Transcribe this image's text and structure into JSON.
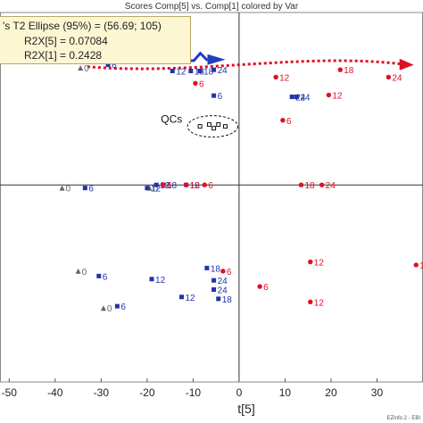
{
  "header": {
    "title": "Scores Comp[5] vs. Comp[1] colored by Var"
  },
  "stats": {
    "ellipse_text": "'s T2 Ellipse (95%) = (56.69; 105)",
    "r2x5_text": "R2X[5] = 0.07084",
    "r2x1_text": "R2X[1] = 0.2428"
  },
  "footer": {
    "text": "EZinfo 2 - EBI"
  },
  "annotation": {
    "qcs_label": "QCs"
  },
  "colors": {
    "blue": "#2233aa",
    "red": "#dd1122",
    "gray": "#666666",
    "arrow_blue": "#1f3fbf",
    "arrow_red": "#dd1122"
  },
  "chart_data": {
    "type": "scatter",
    "title": "Scores Comp[5] vs. Comp[1] colored by Var",
    "xlabel": "t[5]",
    "ylabel": "",
    "xlim": [
      -52,
      40
    ],
    "ylim": [
      -32,
      28
    ],
    "x_ticks": [
      -50,
      -40,
      -30,
      -20,
      -10,
      0,
      10,
      20,
      30
    ],
    "x_tick_labels": [
      "-50",
      "-40",
      "-30",
      "-20",
      "-10",
      "0",
      "10",
      "20",
      "30"
    ],
    "series": [
      {
        "color": "gray",
        "marker": "triangle",
        "points": [
          {
            "x": -34.5,
            "y": 19.0,
            "label": "0"
          },
          {
            "x": -38.5,
            "y": -0.5,
            "label": "0"
          },
          {
            "x": -35.0,
            "y": -14.0,
            "label": "0"
          },
          {
            "x": -29.5,
            "y": -20.0,
            "label": "0"
          },
          {
            "x": -19.5,
            "y": -0.5,
            "label": "0"
          }
        ]
      },
      {
        "color": "blue",
        "marker": "square",
        "points": [
          {
            "x": -28.5,
            "y": 19.5,
            "label": "6"
          },
          {
            "x": -14.5,
            "y": 18.5,
            "label": "12"
          },
          {
            "x": -10.5,
            "y": 18.5,
            "label": "18"
          },
          {
            "x": -8.5,
            "y": 18.5,
            "label": "18"
          },
          {
            "x": -5.5,
            "y": 18.7,
            "label": "24"
          },
          {
            "x": -5.5,
            "y": 14.5,
            "label": "6"
          },
          {
            "x": 11.5,
            "y": 14.3,
            "label": "24"
          },
          {
            "x": 12.5,
            "y": 14.3,
            "label": "24"
          },
          {
            "x": -33.5,
            "y": -0.5,
            "label": "6"
          },
          {
            "x": -20.0,
            "y": -0.5,
            "label": "12"
          },
          {
            "x": -18.0,
            "y": 0.0,
            "label": "12"
          },
          {
            "x": -16.5,
            "y": 0.0,
            "label": "18"
          },
          {
            "x": -11.5,
            "y": 0.0,
            "label": "18"
          },
          {
            "x": -5.5,
            "y": -15.5,
            "label": "24"
          },
          {
            "x": -7.0,
            "y": -13.5,
            "label": "18"
          },
          {
            "x": -5.5,
            "y": -17.0,
            "label": "24"
          },
          {
            "x": -30.5,
            "y": -14.8,
            "label": "6"
          },
          {
            "x": -19.0,
            "y": -15.3,
            "label": "12"
          },
          {
            "x": -26.5,
            "y": -19.7,
            "label": "6"
          },
          {
            "x": -12.5,
            "y": -18.2,
            "label": "12"
          },
          {
            "x": -4.5,
            "y": -18.5,
            "label": "18"
          }
        ]
      },
      {
        "color": "red",
        "marker": "dot",
        "points": [
          {
            "x": 8.0,
            "y": 17.5,
            "label": "12"
          },
          {
            "x": 22.0,
            "y": 18.7,
            "label": "18"
          },
          {
            "x": 32.5,
            "y": 17.5,
            "label": "24"
          },
          {
            "x": -9.5,
            "y": 16.5,
            "label": "6"
          },
          {
            "x": 19.5,
            "y": 14.6,
            "label": "12"
          },
          {
            "x": 9.5,
            "y": 10.5,
            "label": "6"
          },
          {
            "x": -16.5,
            "y": 0.0,
            "label": "6"
          },
          {
            "x": -11.5,
            "y": 0.0,
            "label": "12"
          },
          {
            "x": -7.5,
            "y": 0.0,
            "label": "6"
          },
          {
            "x": 13.5,
            "y": 0.0,
            "label": "18"
          },
          {
            "x": 18.0,
            "y": 0.0,
            "label": "24"
          },
          {
            "x": 15.5,
            "y": -12.5,
            "label": "12"
          },
          {
            "x": -3.5,
            "y": -14.0,
            "label": "6"
          },
          {
            "x": 4.5,
            "y": -16.5,
            "label": "6"
          },
          {
            "x": 15.5,
            "y": -19.0,
            "label": "12"
          },
          {
            "x": 38.5,
            "y": -13.0,
            "label": "1"
          }
        ]
      },
      {
        "color": "black",
        "marker": "open-square",
        "name": "QCs",
        "points": [
          {
            "x": -8.5,
            "y": 9.5
          },
          {
            "x": -6.5,
            "y": 9.8
          },
          {
            "x": -4.5,
            "y": 9.8
          },
          {
            "x": -3.0,
            "y": 9.5
          },
          {
            "x": -5.5,
            "y": 9.2
          }
        ]
      }
    ],
    "annotations": [
      {
        "type": "dashed-ellipse",
        "around": "QCs"
      },
      {
        "type": "arrow",
        "color": "blue",
        "from_x": -35,
        "to_x": -3
      },
      {
        "type": "arrow",
        "color": "red",
        "from_x": -33,
        "to_x": 38
      }
    ],
    "grid": false,
    "legend": "none"
  }
}
